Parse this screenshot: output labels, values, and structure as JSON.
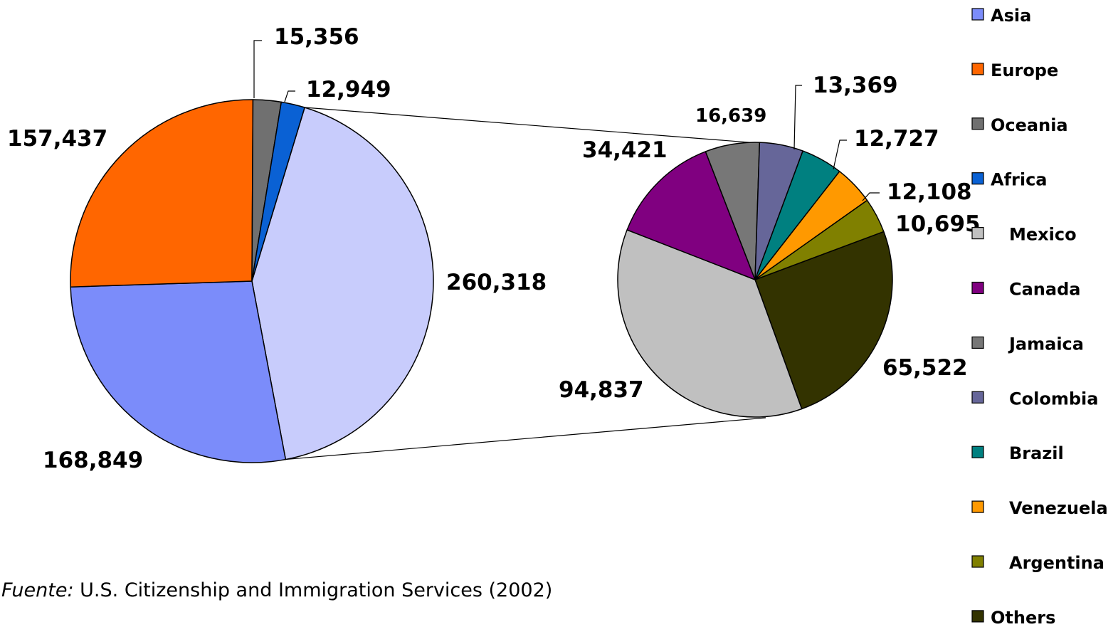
{
  "chart_data": {
    "type": "pie",
    "subtype": "pie-of-pie",
    "main": {
      "slices": [
        {
          "name": "Mexico",
          "value": 260318,
          "label": "260,318",
          "color": "#c8ccfc"
        },
        {
          "name": "Asia",
          "value": 168849,
          "label": "168,849",
          "color": "#7b8cfa"
        },
        {
          "name": "Europe",
          "value": 157437,
          "label": "157,437",
          "color": "#ff6600"
        },
        {
          "name": "Oceania",
          "value": 15356,
          "label": "15,356",
          "color": "#707070"
        },
        {
          "name": "Africa",
          "value": 12949,
          "label": "12,949",
          "color": "#0a61d4"
        }
      ]
    },
    "secondary": {
      "slices": [
        {
          "name": "Others",
          "value": 65522,
          "label": "65,522",
          "color": "#333300"
        },
        {
          "name": "Mexico",
          "value": 94837,
          "label": "94,837",
          "color": "#c0c0c0"
        },
        {
          "name": "Canada",
          "value": 34421,
          "label": "34,421",
          "color": "#800080"
        },
        {
          "name": "Jamaica",
          "value": 16639,
          "label": "16,639",
          "color": "#777777"
        },
        {
          "name": "Colombia",
          "value": 13369,
          "label": "13,369",
          "color": "#666699"
        },
        {
          "name": "Brazil",
          "value": 12727,
          "label": "12,727",
          "color": "#008080"
        },
        {
          "name": "Venezuela",
          "value": 12108,
          "label": "12,108",
          "color": "#ff9900"
        },
        {
          "name": "Argentina",
          "value": 10695,
          "label": "10,695",
          "color": "#808000"
        }
      ]
    },
    "legend": {
      "position": "right",
      "entries": [
        {
          "name": "Asia",
          "color": "#7b8cfa"
        },
        {
          "name": "Europe",
          "color": "#ff6600"
        },
        {
          "name": "Oceania",
          "color": "#707070"
        },
        {
          "name": "Africa",
          "color": "#0a61d4"
        },
        {
          "name": "Mexico",
          "color": "#c0c0c0",
          "indent": true
        },
        {
          "name": "Canada",
          "color": "#800080",
          "indent": true
        },
        {
          "name": "Jamaica",
          "color": "#777777",
          "indent": true
        },
        {
          "name": "Colombia",
          "color": "#666699",
          "indent": true
        },
        {
          "name": "Brazil",
          "color": "#008080",
          "indent": true
        },
        {
          "name": "Venezuela",
          "color": "#ff9900",
          "indent": true
        },
        {
          "name": "Argentina",
          "color": "#808000",
          "indent": true
        },
        {
          "name": "Others",
          "color": "#333300"
        }
      ]
    }
  },
  "source": {
    "prefix": "Fuente:",
    "text": "U.S. Citizenship and Immigration Services (2002)"
  }
}
